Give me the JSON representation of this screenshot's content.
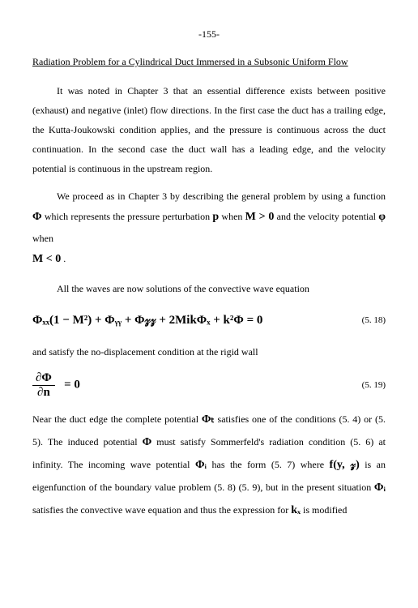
{
  "pageNumber": "-155-",
  "title": "Radiation Problem for a Cylindrical Duct Immersed in a Subsonic Uniform Flow",
  "para1": "It was noted in Chapter 3 that an essential difference exists between positive (exhaust) and negative (inlet) flow directions. In the first case the duct has a trailing edge, the Kutta-Joukowski condition applies, and the pressure is continuous across the duct continuation. In the second case the duct wall has a leading edge, and the velocity potential is continuous in the upstream region.",
  "para2a": "We proceed as in Chapter 3 by describing the general problem by using a function ",
  "sym_phi_big": "Φ",
  "para2b": " which represents the pressure perturbation ",
  "sym_p": "p",
  "para2c": " when ",
  "sym_Mpos": "M > 0",
  "para2d": " and the velocity potential ",
  "sym_phi_small": "φ",
  "para2e": " when ",
  "sym_Mneg": "M < 0",
  "para2f": " .",
  "para3": "All the waves are now solutions of the convective wave equation",
  "eq518": "Φₓₓ(1 − M²)  +  Φᵧᵧ  +  Φ𝓏𝓏  + 2MikΦₓ + k²Φ = 0",
  "eq518num": "(5. 18)",
  "para4": "and satisfy the no-displacement condition at the rigid wall",
  "eq519_num": "∂Φ",
  "eq519_den": "∂n",
  "eq519_rhs": "=   0",
  "eq519num": "(5. 19)",
  "para5a": "Near the duct edge the complete potential ",
  "sym_phit": "Φₜ",
  "para5b": " satisfies one of the conditions (5. 4) or (5. 5). The induced potential ",
  "sym_phi2": "Φ",
  "para5c": " must satisfy Sommerfeld's radiation condition (5. 6) at infinity. The incoming wave potential ",
  "sym_phii": "Φᵢ",
  "para5d": " has the form (5. 7) where ",
  "sym_fyz": "f(y, 𝓏)",
  "para5e": " is an eigenfunction of the boundary value problem (5. 8) (5. 9), but in the present situation ",
  "sym_phii2": "Φᵢ",
  "para5f": " satisfies the convective wave equation and thus the expression for ",
  "sym_kx": "kₓ",
  "para5g": " is modified"
}
